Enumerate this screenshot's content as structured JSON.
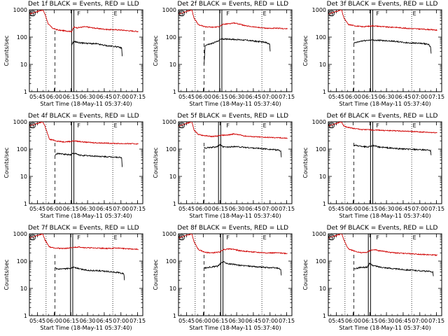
{
  "panels": [
    {
      "title": "Det 1f BLACK = Events, RED = LLD",
      "xlabel": "Start Time (18-May-11 05:37:40)",
      "ylabel": "Counts/sec",
      "xticks": [
        "05:45",
        "06:00",
        "06:15",
        "06:30",
        "06:45",
        "07:00",
        "07:15"
      ]
    },
    {
      "title": "Det 2f BLACK = Events, RED = LLD",
      "xlabel": "Start Time (18-May-11 05:37:40)",
      "ylabel": "Counts/sec",
      "xticks": [
        "05:45",
        "06:00",
        "06:15",
        "06:30",
        "06:45",
        "07:00",
        "07:15"
      ]
    },
    {
      "title": "Det 3f BLACK = Events, RED = LLD",
      "xlabel": "Start Time (18-May-11 05:37:40)",
      "ylabel": "Counts/sec",
      "xticks": [
        "05:45",
        "06:00",
        "06:15",
        "06:30",
        "06:45",
        "07:00",
        "07:15"
      ]
    },
    {
      "title": "Det 4f BLACK = Events, RED = LLD",
      "xlabel": "Start Time (18-May-11 05:37:40)",
      "ylabel": "Counts/sec",
      "xticks": [
        "05:45",
        "06:00",
        "06:15",
        "06:30",
        "06:45",
        "07:00",
        "07:15"
      ]
    },
    {
      "title": "Det 5f BLACK = Events, RED = LLD",
      "xlabel": "Start Time (18-May-11 05:37:40)",
      "ylabel": "Counts/sec",
      "xticks": [
        "05:45",
        "06:00",
        "06:15",
        "06:30",
        "06:45",
        "07:00",
        "07:15"
      ]
    },
    {
      "title": "Det 6f BLACK = Events, RED = LLD",
      "xlabel": "Start Time (18-May-11 05:37:40)",
      "ylabel": "Counts/sec",
      "xticks": [
        "05:45",
        "06:00",
        "06:15",
        "06:30",
        "06:45",
        "07:00",
        "07:15"
      ]
    },
    {
      "title": "Det 7f BLACK = Events, RED = LLD",
      "xlabel": "Start Time (18-May-11 05:37:40)",
      "ylabel": "Counts/sec",
      "xticks": [
        "05:45",
        "06:00",
        "06:15",
        "06:30",
        "06:45",
        "07:00",
        "07:15"
      ]
    },
    {
      "title": "Det 8f BLACK = Events, RED = LLD",
      "xlabel": "Start Time (18-May-11 05:37:40)",
      "ylabel": "Counts/sec",
      "xticks": [
        "05:45",
        "06:00",
        "06:15",
        "06:30",
        "06:45",
        "07:00",
        "07:15"
      ]
    },
    {
      "title": "Det 9f BLACK = Events, RED = LLD",
      "xlabel": "Start Time (18-May-11 05:37:40)",
      "ylabel": "Counts/sec",
      "xticks": [
        "05:45",
        "06:00",
        "06:15",
        "06:30",
        "06:45",
        "07:00",
        "07:15"
      ]
    }
  ],
  "chart_data": {
    "type": "line",
    "x_unit": "minutes after 05:37:40",
    "x_range": [
      0,
      102
    ],
    "y_scale": "log",
    "yticks": [
      "1",
      "10",
      "100",
      "1000"
    ],
    "ylim": [
      1,
      1000
    ],
    "markers": {
      "S": 0.5,
      "F": 42,
      "E": 75
    },
    "panels": [
      {
        "detector": "1f",
        "dash": 23,
        "dots": [
          15,
          75
        ],
        "verticals": [
          38,
          40
        ],
        "red": [
          [
            0,
            700
          ],
          [
            12,
            1000
          ],
          [
            14,
            700
          ],
          [
            17,
            300
          ],
          [
            21,
            210
          ],
          [
            26,
            180
          ],
          [
            32,
            170
          ],
          [
            38,
            160
          ],
          [
            40,
            230
          ],
          [
            43,
            220
          ],
          [
            50,
            240
          ],
          [
            60,
            210
          ],
          [
            70,
            190
          ],
          [
            80,
            185
          ],
          [
            90,
            170
          ],
          [
            98,
            160
          ]
        ],
        "black": [
          [
            38,
            50
          ],
          [
            40,
            70
          ],
          [
            45,
            62
          ],
          [
            50,
            60
          ],
          [
            55,
            58
          ],
          [
            60,
            57
          ],
          [
            65,
            52
          ],
          [
            70,
            48
          ],
          [
            78,
            45
          ],
          [
            83,
            40
          ],
          [
            83.5,
            20
          ]
        ]
      },
      {
        "detector": "2f",
        "dash": 23,
        "dots": [
          15,
          75
        ],
        "verticals": [
          37,
          39
        ],
        "red": [
          [
            0,
            700
          ],
          [
            12,
            1000
          ],
          [
            14,
            500
          ],
          [
            18,
            280
          ],
          [
            24,
            240
          ],
          [
            30,
            230
          ],
          [
            35,
            235
          ],
          [
            37,
            250
          ],
          [
            40,
            290
          ],
          [
            45,
            310
          ],
          [
            50,
            330
          ],
          [
            55,
            300
          ],
          [
            60,
            260
          ],
          [
            70,
            230
          ],
          [
            80,
            210
          ],
          [
            90,
            210
          ],
          [
            98,
            200
          ]
        ],
        "black": [
          [
            23,
            10
          ],
          [
            24,
            50
          ],
          [
            30,
            58
          ],
          [
            35,
            70
          ],
          [
            38,
            85
          ],
          [
            45,
            85
          ],
          [
            50,
            82
          ],
          [
            55,
            80
          ],
          [
            60,
            78
          ],
          [
            70,
            70
          ],
          [
            78,
            65
          ],
          [
            82,
            55
          ],
          [
            82.5,
            30
          ]
        ]
      },
      {
        "detector": "3f",
        "dash": 23,
        "dots": [
          15,
          75
        ],
        "verticals": [
          38,
          40
        ],
        "red": [
          [
            0,
            700
          ],
          [
            12,
            1000
          ],
          [
            14,
            500
          ],
          [
            18,
            290
          ],
          [
            24,
            260
          ],
          [
            30,
            240
          ],
          [
            37,
            250
          ],
          [
            40,
            260
          ],
          [
            45,
            250
          ],
          [
            50,
            240
          ],
          [
            55,
            230
          ],
          [
            60,
            230
          ],
          [
            70,
            210
          ],
          [
            80,
            200
          ],
          [
            90,
            190
          ],
          [
            98,
            180
          ]
        ],
        "black": [
          [
            23,
            60
          ],
          [
            30,
            72
          ],
          [
            38,
            78
          ],
          [
            45,
            76
          ],
          [
            55,
            73
          ],
          [
            60,
            70
          ],
          [
            70,
            62
          ],
          [
            80,
            60
          ],
          [
            90,
            55
          ],
          [
            92,
            42
          ],
          [
            92.5,
            25
          ]
        ]
      },
      {
        "detector": "4f",
        "dash": 23,
        "dots": [
          15,
          75
        ],
        "verticals": [
          38,
          40
        ],
        "red": [
          [
            0,
            700
          ],
          [
            12,
            1000
          ],
          [
            14,
            700
          ],
          [
            18,
            230
          ],
          [
            24,
            200
          ],
          [
            30,
            185
          ],
          [
            37,
            190
          ],
          [
            40,
            200
          ],
          [
            45,
            190
          ],
          [
            50,
            180
          ],
          [
            60,
            170
          ],
          [
            70,
            165
          ],
          [
            80,
            160
          ],
          [
            90,
            158
          ],
          [
            98,
            155
          ]
        ],
        "black": [
          [
            23,
            60
          ],
          [
            26,
            70
          ],
          [
            30,
            65
          ],
          [
            37,
            62
          ],
          [
            40,
            72
          ],
          [
            45,
            60
          ],
          [
            50,
            58
          ],
          [
            60,
            55
          ],
          [
            70,
            52
          ],
          [
            80,
            50
          ],
          [
            83,
            48
          ],
          [
            83.5,
            22
          ]
        ]
      },
      {
        "detector": "5f",
        "dash": 23,
        "dots": [
          15,
          75
        ],
        "verticals": [
          36,
          38
        ],
        "red": [
          [
            0,
            700
          ],
          [
            12,
            1000
          ],
          [
            14,
            500
          ],
          [
            18,
            340
          ],
          [
            24,
            310
          ],
          [
            30,
            290
          ],
          [
            35,
            300
          ],
          [
            38,
            320
          ],
          [
            45,
            330
          ],
          [
            50,
            360
          ],
          [
            55,
            330
          ],
          [
            60,
            300
          ],
          [
            70,
            280
          ],
          [
            80,
            270
          ],
          [
            90,
            260
          ],
          [
            98,
            250
          ]
        ],
        "black": [
          [
            23,
            110
          ],
          [
            30,
            115
          ],
          [
            35,
            125
          ],
          [
            37,
            145
          ],
          [
            40,
            120
          ],
          [
            45,
            118
          ],
          [
            50,
            125
          ],
          [
            55,
            120
          ],
          [
            60,
            115
          ],
          [
            70,
            108
          ],
          [
            80,
            100
          ],
          [
            90,
            92
          ],
          [
            92,
            85
          ],
          [
            92.5,
            50
          ]
        ]
      },
      {
        "detector": "6f",
        "dash": 23,
        "dots": [
          15,
          75
        ],
        "verticals": [
          38,
          40
        ],
        "red": [
          [
            0,
            700
          ],
          [
            12,
            1000
          ],
          [
            14,
            700
          ],
          [
            18,
            620
          ],
          [
            24,
            560
          ],
          [
            30,
            520
          ],
          [
            37,
            510
          ],
          [
            40,
            500
          ],
          [
            45,
            500
          ],
          [
            50,
            480
          ],
          [
            60,
            470
          ],
          [
            70,
            450
          ],
          [
            80,
            430
          ],
          [
            90,
            410
          ],
          [
            98,
            400
          ]
        ],
        "black": [
          [
            23,
            140
          ],
          [
            28,
            130
          ],
          [
            35,
            120
          ],
          [
            40,
            135
          ],
          [
            45,
            120
          ],
          [
            55,
            110
          ],
          [
            60,
            105
          ],
          [
            70,
            100
          ],
          [
            80,
            95
          ],
          [
            90,
            92
          ],
          [
            92,
            85
          ],
          [
            92.5,
            60
          ]
        ]
      },
      {
        "detector": "7f",
        "dash": 23,
        "dots": [
          15,
          75
        ],
        "verticals": [
          37,
          39
        ],
        "red": [
          [
            0,
            700
          ],
          [
            12,
            1000
          ],
          [
            14,
            600
          ],
          [
            18,
            330
          ],
          [
            24,
            300
          ],
          [
            30,
            290
          ],
          [
            37,
            300
          ],
          [
            40,
            320
          ],
          [
            45,
            330
          ],
          [
            50,
            310
          ],
          [
            60,
            300
          ],
          [
            70,
            290
          ],
          [
            80,
            300
          ],
          [
            90,
            280
          ],
          [
            98,
            270
          ]
        ],
        "black": [
          [
            23,
            55
          ],
          [
            26,
            50
          ],
          [
            32,
            52
          ],
          [
            37,
            55
          ],
          [
            40,
            60
          ],
          [
            45,
            52
          ],
          [
            50,
            48
          ],
          [
            55,
            45
          ],
          [
            60,
            45
          ],
          [
            70,
            42
          ],
          [
            80,
            38
          ],
          [
            85,
            34
          ],
          [
            85.5,
            20
          ]
        ]
      },
      {
        "detector": "8f",
        "dash": 23,
        "dots": [
          15,
          75
        ],
        "verticals": [
          38,
          40
        ],
        "red": [
          [
            0,
            700
          ],
          [
            12,
            1000
          ],
          [
            14,
            500
          ],
          [
            18,
            260
          ],
          [
            24,
            210
          ],
          [
            30,
            200
          ],
          [
            37,
            215
          ],
          [
            40,
            260
          ],
          [
            45,
            280
          ],
          [
            50,
            270
          ],
          [
            55,
            240
          ],
          [
            60,
            230
          ],
          [
            70,
            210
          ],
          [
            80,
            200
          ],
          [
            90,
            200
          ],
          [
            98,
            190
          ]
        ],
        "black": [
          [
            23,
            55
          ],
          [
            28,
            60
          ],
          [
            35,
            65
          ],
          [
            40,
            95
          ],
          [
            45,
            80
          ],
          [
            50,
            75
          ],
          [
            55,
            70
          ],
          [
            60,
            68
          ],
          [
            70,
            62
          ],
          [
            80,
            58
          ],
          [
            90,
            55
          ],
          [
            92,
            48
          ],
          [
            92.5,
            30
          ]
        ]
      },
      {
        "detector": "9f",
        "dash": 23,
        "dots": [
          15,
          75
        ],
        "verticals": [
          36,
          38
        ],
        "red": [
          [
            0,
            700
          ],
          [
            12,
            1000
          ],
          [
            14,
            600
          ],
          [
            18,
            280
          ],
          [
            24,
            230
          ],
          [
            30,
            200
          ],
          [
            35,
            210
          ],
          [
            38,
            250
          ],
          [
            42,
            260
          ],
          [
            45,
            240
          ],
          [
            50,
            230
          ],
          [
            55,
            210
          ],
          [
            60,
            200
          ],
          [
            70,
            190
          ],
          [
            80,
            180
          ],
          [
            90,
            170
          ],
          [
            98,
            165
          ]
        ],
        "black": [
          [
            23,
            50
          ],
          [
            28,
            58
          ],
          [
            35,
            60
          ],
          [
            37,
            80
          ],
          [
            40,
            70
          ],
          [
            45,
            62
          ],
          [
            50,
            58
          ],
          [
            55,
            55
          ],
          [
            60,
            52
          ],
          [
            70,
            48
          ],
          [
            80,
            45
          ],
          [
            90,
            42
          ],
          [
            94,
            40
          ],
          [
            94.5,
            28
          ]
        ]
      }
    ]
  }
}
